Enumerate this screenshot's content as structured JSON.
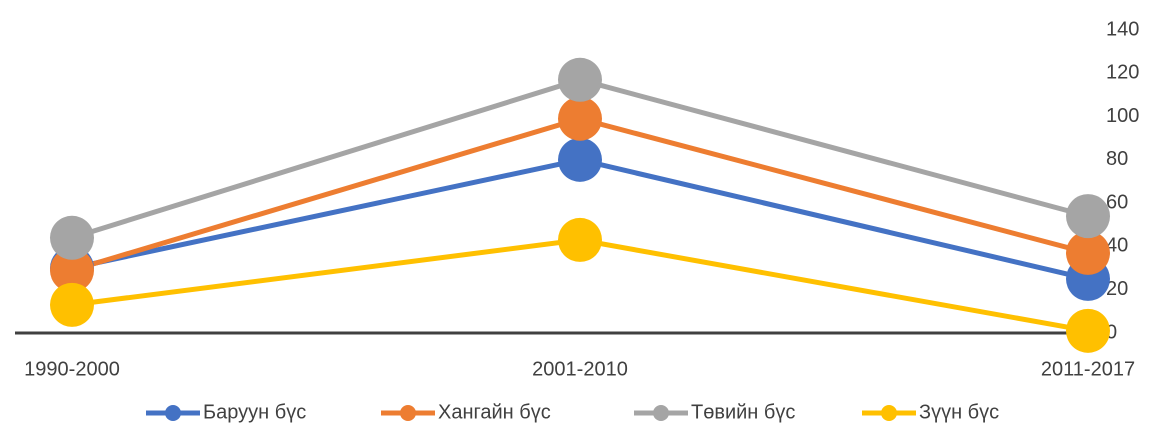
{
  "chart_data": {
    "type": "line",
    "categories": [
      "1990-2000",
      "2001-2010",
      "2011-2017"
    ],
    "series": [
      {
        "name": "Баруун бүс",
        "color": "#4472c4",
        "values": [
          30,
          80,
          25
        ]
      },
      {
        "name": "Хангайн бүс",
        "color": "#ed7d31",
        "values": [
          29,
          99,
          37
        ]
      },
      {
        "name": "Төвийн бүс",
        "color": "#a5a5a5",
        "values": [
          44,
          117,
          54
        ]
      },
      {
        "name": "Зүүн бүс",
        "color": "#ffc000",
        "values": [
          13,
          43,
          1
        ]
      }
    ],
    "ylim": [
      0,
      140
    ],
    "yticks": [
      0,
      20,
      40,
      60,
      80,
      100,
      120,
      140
    ],
    "legend": "bottom"
  }
}
